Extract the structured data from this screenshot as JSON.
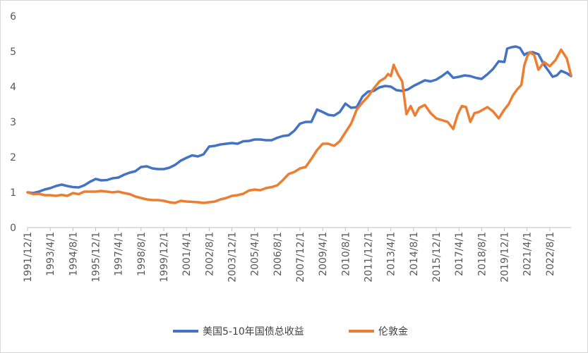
{
  "chart_data": {
    "type": "line",
    "title": "",
    "xlabel": "",
    "ylabel": "",
    "ylim": [
      0,
      6
    ],
    "yticks": [
      "0",
      "1",
      "2",
      "3",
      "4",
      "5",
      "6"
    ],
    "grid": false,
    "legend_position": "bottom",
    "x_range": [
      "1991/12/1",
      "2023/11/1"
    ],
    "x_tick_labels": [
      {
        "date": "1991/12/1",
        "label": "1991/12/1"
      },
      {
        "date": "1993/4/1",
        "label": "1993/4/1"
      },
      {
        "date": "1994/8/1",
        "label": "1994/8/1"
      },
      {
        "date": "1995/12/1",
        "label": "1995/12/1"
      },
      {
        "date": "1997/4/1",
        "label": "1997/4/1"
      },
      {
        "date": "1998/8/1",
        "label": "1998/8/1"
      },
      {
        "date": "1999/12/1",
        "label": "1999/12/1"
      },
      {
        "date": "2001/4/1",
        "label": "2001/4/1"
      },
      {
        "date": "2002/8/1",
        "label": "2002/8/1"
      },
      {
        "date": "2003/12/1",
        "label": "2003/12/1"
      },
      {
        "date": "2005/4/1",
        "label": "2005/4/1"
      },
      {
        "date": "2006/8/1",
        "label": "2006/8/1"
      },
      {
        "date": "2007/12/1",
        "label": "2007/12/1"
      },
      {
        "date": "2009/4/1",
        "label": "2009/4/1"
      },
      {
        "date": "2010/8/1",
        "label": "2010/8/1"
      },
      {
        "date": "2011/12/1",
        "label": "2011/12/1"
      },
      {
        "date": "2013/4/1",
        "label": "2013/4/1"
      },
      {
        "date": "2014/8/1",
        "label": "2014/8/1"
      },
      {
        "date": "2015/12/1",
        "label": "2015/12/1"
      },
      {
        "date": "2017/4/1",
        "label": "2017/4/1"
      },
      {
        "date": "2018/8/1",
        "label": "2018/8/1"
      },
      {
        "date": "2019/12/1",
        "label": "2019/12/1"
      },
      {
        "date": "2021/4/1",
        "label": "2021/4/1"
      },
      {
        "date": "2022/8/1",
        "label": "2022/8/1"
      }
    ],
    "series": [
      {
        "name": "美国5-10年国债总收益",
        "color": "#4472C4",
        "points": [
          [
            "1991/12/1",
            1.0
          ],
          [
            "1992/4/1",
            0.98
          ],
          [
            "1992/8/1",
            1.02
          ],
          [
            "1992/12/1",
            1.08
          ],
          [
            "1993/4/1",
            1.12
          ],
          [
            "1993/8/1",
            1.18
          ],
          [
            "1993/12/1",
            1.22
          ],
          [
            "1994/4/1",
            1.18
          ],
          [
            "1994/8/1",
            1.15
          ],
          [
            "1994/12/1",
            1.14
          ],
          [
            "1995/4/1",
            1.2
          ],
          [
            "1995/8/1",
            1.3
          ],
          [
            "1995/12/1",
            1.38
          ],
          [
            "1996/4/1",
            1.34
          ],
          [
            "1996/8/1",
            1.35
          ],
          [
            "1996/12/1",
            1.4
          ],
          [
            "1997/4/1",
            1.42
          ],
          [
            "1997/8/1",
            1.5
          ],
          [
            "1997/12/1",
            1.56
          ],
          [
            "1998/4/1",
            1.6
          ],
          [
            "1998/8/1",
            1.72
          ],
          [
            "1998/12/1",
            1.74
          ],
          [
            "1999/4/1",
            1.68
          ],
          [
            "1999/8/1",
            1.66
          ],
          [
            "1999/12/1",
            1.66
          ],
          [
            "2000/4/1",
            1.7
          ],
          [
            "2000/8/1",
            1.78
          ],
          [
            "2000/12/1",
            1.9
          ],
          [
            "2001/4/1",
            1.98
          ],
          [
            "2001/8/1",
            2.05
          ],
          [
            "2001/12/1",
            2.02
          ],
          [
            "2002/4/1",
            2.08
          ],
          [
            "2002/8/1",
            2.3
          ],
          [
            "2002/12/1",
            2.32
          ],
          [
            "2003/4/1",
            2.36
          ],
          [
            "2003/8/1",
            2.38
          ],
          [
            "2003/12/1",
            2.4
          ],
          [
            "2004/4/1",
            2.38
          ],
          [
            "2004/8/1",
            2.45
          ],
          [
            "2004/12/1",
            2.46
          ],
          [
            "2005/4/1",
            2.5
          ],
          [
            "2005/8/1",
            2.5
          ],
          [
            "2005/12/1",
            2.48
          ],
          [
            "2006/4/1",
            2.48
          ],
          [
            "2006/8/1",
            2.55
          ],
          [
            "2006/12/1",
            2.6
          ],
          [
            "2007/4/1",
            2.62
          ],
          [
            "2007/8/1",
            2.75
          ],
          [
            "2007/12/1",
            2.95
          ],
          [
            "2008/4/1",
            3.0
          ],
          [
            "2008/8/1",
            3.0
          ],
          [
            "2008/12/1",
            3.35
          ],
          [
            "2009/4/1",
            3.28
          ],
          [
            "2009/8/1",
            3.2
          ],
          [
            "2009/12/1",
            3.18
          ],
          [
            "2010/4/1",
            3.28
          ],
          [
            "2010/8/1",
            3.52
          ],
          [
            "2010/12/1",
            3.4
          ],
          [
            "2011/4/1",
            3.42
          ],
          [
            "2011/8/1",
            3.72
          ],
          [
            "2011/12/1",
            3.86
          ],
          [
            "2012/4/1",
            3.88
          ],
          [
            "2012/8/1",
            3.98
          ],
          [
            "2012/12/1",
            4.02
          ],
          [
            "2013/4/1",
            4.0
          ],
          [
            "2013/8/1",
            3.9
          ],
          [
            "2013/12/1",
            3.88
          ],
          [
            "2014/4/1",
            3.92
          ],
          [
            "2014/8/1",
            4.02
          ],
          [
            "2014/12/1",
            4.1
          ],
          [
            "2015/4/1",
            4.18
          ],
          [
            "2015/8/1",
            4.15
          ],
          [
            "2015/12/1",
            4.2
          ],
          [
            "2016/4/1",
            4.3
          ],
          [
            "2016/8/1",
            4.42
          ],
          [
            "2016/12/1",
            4.25
          ],
          [
            "2017/4/1",
            4.28
          ],
          [
            "2017/8/1",
            4.32
          ],
          [
            "2017/12/1",
            4.3
          ],
          [
            "2018/4/1",
            4.25
          ],
          [
            "2018/8/1",
            4.22
          ],
          [
            "2018/12/1",
            4.35
          ],
          [
            "2019/4/1",
            4.5
          ],
          [
            "2019/8/1",
            4.72
          ],
          [
            "2019/12/1",
            4.7
          ],
          [
            "2020/2/1",
            5.08
          ],
          [
            "2020/5/1",
            5.12
          ],
          [
            "2020/8/1",
            5.14
          ],
          [
            "2020/11/1",
            5.1
          ],
          [
            "2021/2/1",
            4.9
          ],
          [
            "2021/4/1",
            4.95
          ],
          [
            "2021/8/1",
            4.98
          ],
          [
            "2021/12/1",
            4.92
          ],
          [
            "2022/4/1",
            4.62
          ],
          [
            "2022/8/1",
            4.4
          ],
          [
            "2022/10/1",
            4.28
          ],
          [
            "2023/1/1",
            4.32
          ],
          [
            "2023/4/1",
            4.45
          ],
          [
            "2023/8/1",
            4.38
          ],
          [
            "2023/11/1",
            4.3
          ]
        ]
      },
      {
        "name": "伦敦金",
        "color": "#ED7D31",
        "points": [
          [
            "1991/12/1",
            1.0
          ],
          [
            "1992/4/1",
            0.95
          ],
          [
            "1992/8/1",
            0.96
          ],
          [
            "1992/12/1",
            0.92
          ],
          [
            "1993/4/1",
            0.92
          ],
          [
            "1993/8/1",
            0.9
          ],
          [
            "1993/12/1",
            0.93
          ],
          [
            "1994/4/1",
            0.9
          ],
          [
            "1994/8/1",
            0.98
          ],
          [
            "1994/12/1",
            0.95
          ],
          [
            "1995/4/1",
            1.02
          ],
          [
            "1995/8/1",
            1.02
          ],
          [
            "1995/12/1",
            1.02
          ],
          [
            "1996/4/1",
            1.04
          ],
          [
            "1996/8/1",
            1.02
          ],
          [
            "1996/12/1",
            1.0
          ],
          [
            "1997/4/1",
            1.02
          ],
          [
            "1997/8/1",
            0.98
          ],
          [
            "1997/12/1",
            0.95
          ],
          [
            "1998/4/1",
            0.88
          ],
          [
            "1998/8/1",
            0.84
          ],
          [
            "1998/12/1",
            0.8
          ],
          [
            "1999/4/1",
            0.78
          ],
          [
            "1999/8/1",
            0.78
          ],
          [
            "1999/12/1",
            0.76
          ],
          [
            "2000/4/1",
            0.72
          ],
          [
            "2000/8/1",
            0.7
          ],
          [
            "2000/12/1",
            0.76
          ],
          [
            "2001/4/1",
            0.74
          ],
          [
            "2001/8/1",
            0.73
          ],
          [
            "2001/12/1",
            0.72
          ],
          [
            "2002/4/1",
            0.7
          ],
          [
            "2002/8/1",
            0.72
          ],
          [
            "2002/12/1",
            0.74
          ],
          [
            "2003/4/1",
            0.8
          ],
          [
            "2003/8/1",
            0.84
          ],
          [
            "2003/12/1",
            0.9
          ],
          [
            "2004/4/1",
            0.92
          ],
          [
            "2004/8/1",
            0.96
          ],
          [
            "2004/12/1",
            1.05
          ],
          [
            "2005/4/1",
            1.08
          ],
          [
            "2005/8/1",
            1.06
          ],
          [
            "2005/12/1",
            1.12
          ],
          [
            "2006/4/1",
            1.15
          ],
          [
            "2006/8/1",
            1.2
          ],
          [
            "2006/12/1",
            1.35
          ],
          [
            "2007/4/1",
            1.52
          ],
          [
            "2007/8/1",
            1.58
          ],
          [
            "2007/12/1",
            1.68
          ],
          [
            "2008/4/1",
            1.72
          ],
          [
            "2008/8/1",
            1.95
          ],
          [
            "2008/12/1",
            2.2
          ],
          [
            "2009/4/1",
            2.38
          ],
          [
            "2009/8/1",
            2.38
          ],
          [
            "2009/12/1",
            2.32
          ],
          [
            "2010/4/1",
            2.45
          ],
          [
            "2010/8/1",
            2.7
          ],
          [
            "2010/12/1",
            2.95
          ],
          [
            "2011/4/1",
            3.35
          ],
          [
            "2011/8/1",
            3.55
          ],
          [
            "2011/12/1",
            3.72
          ],
          [
            "2012/4/1",
            3.95
          ],
          [
            "2012/8/1",
            4.15
          ],
          [
            "2012/12/1",
            4.25
          ],
          [
            "2013/2/1",
            4.36
          ],
          [
            "2013/4/1",
            4.3
          ],
          [
            "2013/6/1",
            4.62
          ],
          [
            "2013/9/1",
            4.35
          ],
          [
            "2013/12/1",
            4.15
          ],
          [
            "2014/3/1",
            3.22
          ],
          [
            "2014/6/1",
            3.45
          ],
          [
            "2014/9/1",
            3.18
          ],
          [
            "2014/12/1",
            3.4
          ],
          [
            "2015/4/1",
            3.48
          ],
          [
            "2015/8/1",
            3.25
          ],
          [
            "2015/12/1",
            3.1
          ],
          [
            "2016/4/1",
            3.05
          ],
          [
            "2016/8/1",
            3.0
          ],
          [
            "2016/12/1",
            2.8
          ],
          [
            "2017/3/1",
            3.2
          ],
          [
            "2017/6/1",
            3.45
          ],
          [
            "2017/9/1",
            3.42
          ],
          [
            "2017/12/1",
            3.0
          ],
          [
            "2018/3/1",
            3.25
          ],
          [
            "2018/6/1",
            3.28
          ],
          [
            "2018/9/1",
            3.35
          ],
          [
            "2018/12/1",
            3.42
          ],
          [
            "2019/4/1",
            3.3
          ],
          [
            "2019/8/1",
            3.1
          ],
          [
            "2019/12/1",
            3.35
          ],
          [
            "2020/3/1",
            3.5
          ],
          [
            "2020/6/1",
            3.75
          ],
          [
            "2020/9/1",
            3.92
          ],
          [
            "2020/12/1",
            4.05
          ],
          [
            "2021/2/1",
            4.6
          ],
          [
            "2021/4/1",
            4.85
          ],
          [
            "2021/6/1",
            4.98
          ],
          [
            "2021/9/1",
            4.9
          ],
          [
            "2021/12/1",
            4.48
          ],
          [
            "2022/4/1",
            4.7
          ],
          [
            "2022/8/1",
            4.58
          ],
          [
            "2022/12/1",
            4.75
          ],
          [
            "2023/4/1",
            5.05
          ],
          [
            "2023/8/1",
            4.8
          ],
          [
            "2023/11/1",
            4.32
          ]
        ]
      }
    ]
  }
}
